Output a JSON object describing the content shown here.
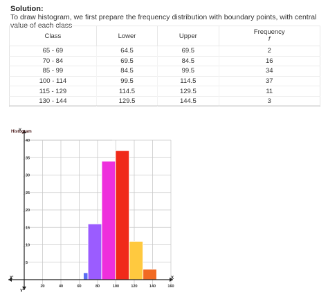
{
  "solution": {
    "heading": "Solution:",
    "text": "To draw histogram, we first prepare the frequency distribution with boundary points, with central value of each class"
  },
  "table": {
    "headers": [
      "Class",
      "Lower",
      "Upper",
      "Frequency"
    ],
    "freq_symbol": "f",
    "rows": [
      [
        "65 - 69",
        "64.5",
        "69.5",
        "2"
      ],
      [
        "70 - 84",
        "69.5",
        "84.5",
        "16"
      ],
      [
        "85 - 99",
        "84.5",
        "99.5",
        "34"
      ],
      [
        "100 - 114",
        "99.5",
        "114.5",
        "37"
      ],
      [
        "115 - 129",
        "114.5",
        "129.5",
        "11"
      ],
      [
        "130 - 144",
        "129.5",
        "144.5",
        "3"
      ]
    ]
  },
  "chart_data": {
    "type": "bar",
    "title": "Histogram",
    "xlabel": "X",
    "ylabel": "Y",
    "x_neg_label": "X'",
    "y_neg_label": "Y'",
    "xlim": [
      0,
      160
    ],
    "ylim": [
      0,
      40
    ],
    "x_ticks": [
      20,
      40,
      60,
      80,
      100,
      120,
      140,
      160
    ],
    "y_ticks": [
      5,
      10,
      15,
      20,
      25,
      30,
      35,
      40
    ],
    "grid": true,
    "bins": [
      {
        "lower": 64.5,
        "upper": 69.5,
        "value": 2,
        "color": "#5b6cf2"
      },
      {
        "lower": 69.5,
        "upper": 84.5,
        "value": 16,
        "color": "#9b5cff"
      },
      {
        "lower": 84.5,
        "upper": 99.5,
        "value": 34,
        "color": "#ee2fdc"
      },
      {
        "lower": 99.5,
        "upper": 114.5,
        "value": 37,
        "color": "#f02a1a"
      },
      {
        "lower": 114.5,
        "upper": 129.5,
        "value": 11,
        "color": "#ffc93f"
      },
      {
        "lower": 129.5,
        "upper": 144.5,
        "value": 3,
        "color": "#f26a22"
      }
    ]
  }
}
